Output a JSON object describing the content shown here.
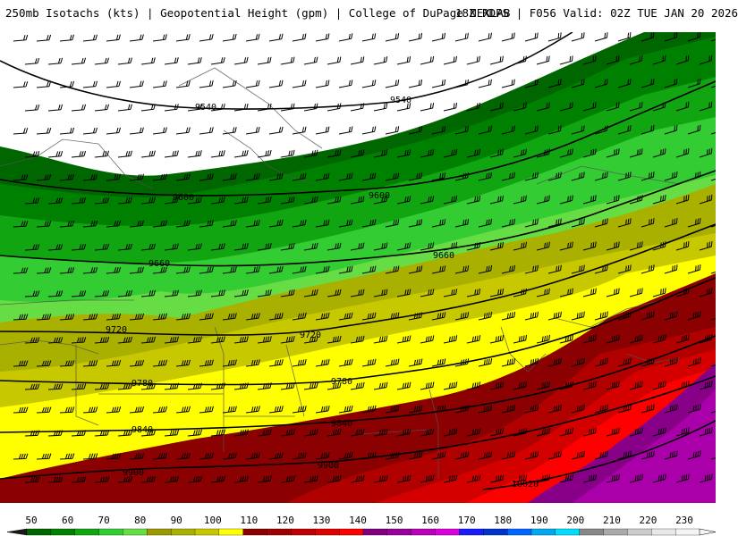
{
  "header": {
    "left_title": "250mb Isotachs (kts) | Geopotential Height (gpm) | College of DuPage NEXLAB",
    "right_title": "18Z RDPS | F056 Valid: 02Z TUE JAN 20 2026"
  },
  "colors": {
    "background": "#ffffff",
    "contour": "#000000",
    "borders": "#555555"
  },
  "isotach_bands": [
    {
      "min": 50,
      "color": "#006600"
    },
    {
      "min": 60,
      "color": "#008000"
    },
    {
      "min": 70,
      "color": "#11a611"
    },
    {
      "min": 80,
      "color": "#33cc33"
    },
    {
      "min": 90,
      "color": "#66dd44"
    },
    {
      "min": 100,
      "color": "#aab000"
    },
    {
      "min": 110,
      "color": "#c8c800"
    },
    {
      "min": 120,
      "color": "#ffff00"
    },
    {
      "min": 130,
      "color": "#8b0000"
    },
    {
      "min": 140,
      "color": "#b00000"
    },
    {
      "min": 150,
      "color": "#d40000"
    },
    {
      "min": 160,
      "color": "#ff0000"
    },
    {
      "min": 170,
      "color": "#880088"
    },
    {
      "min": 180,
      "color": "#aa00aa"
    },
    {
      "min": 190,
      "color": "#cc00cc"
    }
  ],
  "height_contours": [
    {
      "label": "9540"
    },
    {
      "label": "9600"
    },
    {
      "label": "9660"
    },
    {
      "label": "9720"
    },
    {
      "label": "9780"
    },
    {
      "label": "9840"
    },
    {
      "label": "9900"
    },
    {
      "label": "10020"
    }
  ],
  "legend": {
    "ticks": [
      "50",
      "60",
      "70",
      "80",
      "90",
      "100",
      "110",
      "120",
      "130",
      "140",
      "150",
      "160",
      "170",
      "180",
      "190",
      "200",
      "210",
      "220",
      "230"
    ],
    "swatches": [
      "#006600",
      "#008000",
      "#11a611",
      "#33cc33",
      "#66dd44",
      "#9a9a00",
      "#aab000",
      "#c8c800",
      "#ffff00",
      "#8b0000",
      "#a00000",
      "#c00000",
      "#e00000",
      "#ff0000",
      "#800080",
      "#990099",
      "#bb00bb",
      "#dd00dd",
      "#1a1aff",
      "#0033cc",
      "#0066ff",
      "#00aaee",
      "#00ddff",
      "#888888",
      "#aaaaaa",
      "#cccccc",
      "#e8e8e8",
      "#f4f4f4"
    ],
    "left_arrow_color": "#1a1a1a",
    "right_arrow_color": "#f4f4f4"
  }
}
